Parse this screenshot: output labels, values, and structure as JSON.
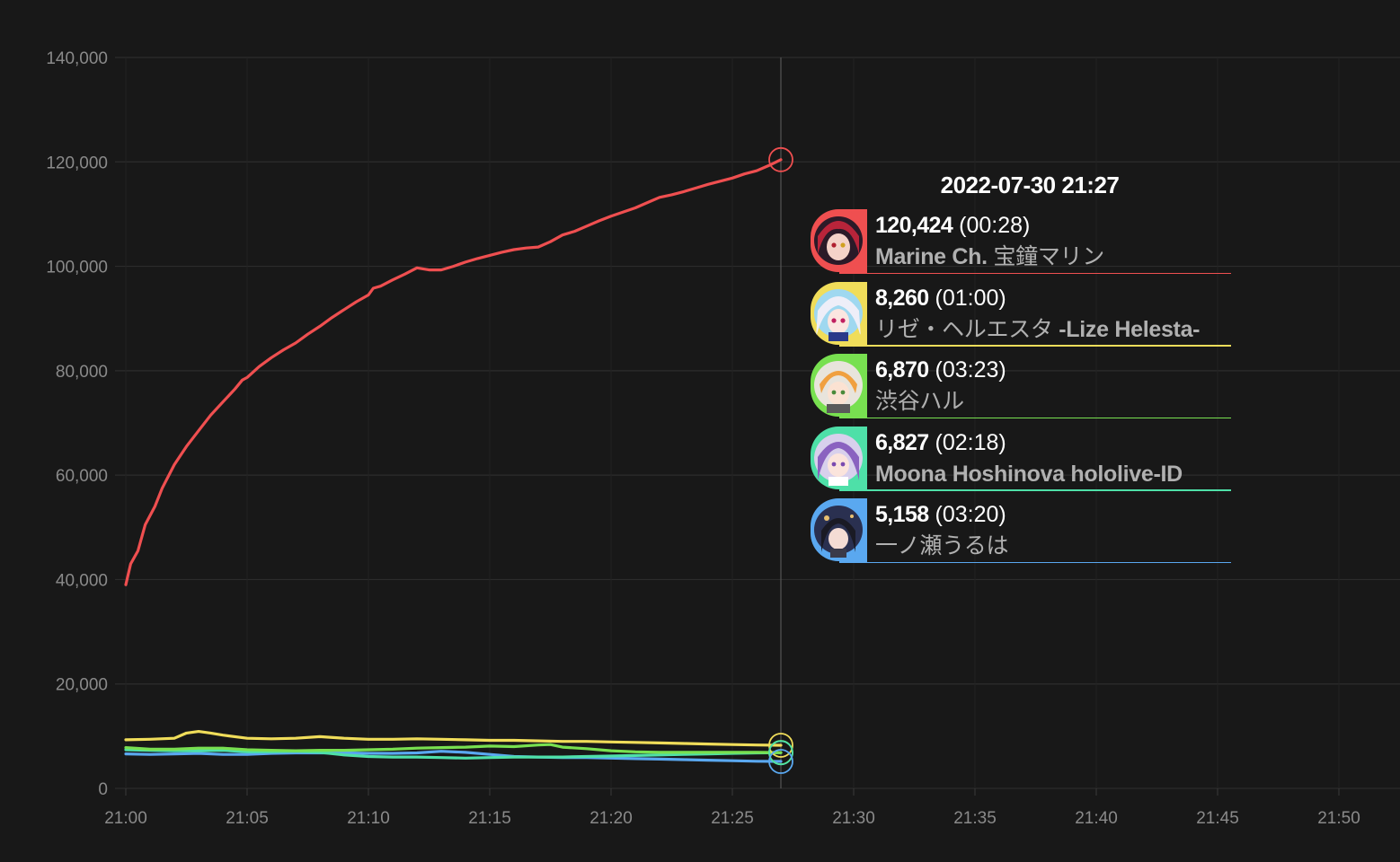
{
  "chart_data": {
    "type": "line",
    "x_ticks": [
      "21:00",
      "21:05",
      "21:10",
      "21:15",
      "21:20",
      "21:25",
      "21:30",
      "21:35",
      "21:40",
      "21:45",
      "21:50"
    ],
    "y_ticks": [
      "0",
      "20,000",
      "40,000",
      "60,000",
      "80,000",
      "100,000",
      "120,000",
      "140,000"
    ],
    "ylim": [
      0,
      140000
    ],
    "xlim_minutes": [
      0,
      52
    ],
    "grid": true,
    "cursor_time_minutes": 27,
    "series": [
      {
        "color": "#ef4f50",
        "points": [
          [
            0,
            39000
          ],
          [
            0.2,
            43000
          ],
          [
            0.5,
            45500
          ],
          [
            0.8,
            50500
          ],
          [
            1.2,
            54000
          ],
          [
            1.5,
            57500
          ],
          [
            2,
            62000
          ],
          [
            2.5,
            65500
          ],
          [
            3,
            68500
          ],
          [
            3.5,
            71500
          ],
          [
            4,
            74000
          ],
          [
            4.5,
            76500
          ],
          [
            4.8,
            78200
          ],
          [
            5,
            78700
          ],
          [
            5.5,
            80800
          ],
          [
            6,
            82500
          ],
          [
            6.5,
            84000
          ],
          [
            7,
            85300
          ],
          [
            7.5,
            87000
          ],
          [
            8,
            88500
          ],
          [
            8.5,
            90200
          ],
          [
            9,
            91700
          ],
          [
            9.5,
            93200
          ],
          [
            10,
            94500
          ],
          [
            10.2,
            95800
          ],
          [
            10.5,
            96200
          ],
          [
            11,
            97400
          ],
          [
            11.5,
            98500
          ],
          [
            12,
            99700
          ],
          [
            12.5,
            99300
          ],
          [
            13,
            99300
          ],
          [
            13.5,
            100000
          ],
          [
            14,
            100800
          ],
          [
            14.5,
            101500
          ],
          [
            15,
            102100
          ],
          [
            15.5,
            102700
          ],
          [
            16,
            103200
          ],
          [
            16.5,
            103500
          ],
          [
            17,
            103700
          ],
          [
            17.5,
            104700
          ],
          [
            18,
            106000
          ],
          [
            18.5,
            106700
          ],
          [
            19,
            107700
          ],
          [
            19.5,
            108700
          ],
          [
            20,
            109600
          ],
          [
            20.5,
            110400
          ],
          [
            21,
            111200
          ],
          [
            21.5,
            112200
          ],
          [
            22,
            113200
          ],
          [
            22.5,
            113700
          ],
          [
            23,
            114300
          ],
          [
            23.5,
            115000
          ],
          [
            24,
            115700
          ],
          [
            24.5,
            116300
          ],
          [
            25,
            116900
          ],
          [
            25.5,
            117700
          ],
          [
            26,
            118300
          ],
          [
            26.5,
            119300
          ],
          [
            27,
            120424
          ]
        ]
      },
      {
        "color": "#f0dd5a",
        "points": [
          [
            0,
            9300
          ],
          [
            1,
            9400
          ],
          [
            2,
            9600
          ],
          [
            2.5,
            10600
          ],
          [
            3,
            10900
          ],
          [
            3.5,
            10600
          ],
          [
            4,
            10200
          ],
          [
            5,
            9600
          ],
          [
            6,
            9500
          ],
          [
            7,
            9600
          ],
          [
            8,
            9900
          ],
          [
            9,
            9600
          ],
          [
            10,
            9400
          ],
          [
            11,
            9400
          ],
          [
            12,
            9500
          ],
          [
            13,
            9400
          ],
          [
            14,
            9300
          ],
          [
            15,
            9200
          ],
          [
            16,
            9200
          ],
          [
            17,
            9100
          ],
          [
            18,
            9000
          ],
          [
            19,
            9000
          ],
          [
            20,
            8900
          ],
          [
            21,
            8800
          ],
          [
            22,
            8700
          ],
          [
            23,
            8600
          ],
          [
            24,
            8500
          ],
          [
            25,
            8400
          ],
          [
            26,
            8300
          ],
          [
            27,
            8260
          ]
        ]
      },
      {
        "color": "#78e050",
        "points": [
          [
            0,
            7800
          ],
          [
            1,
            7500
          ],
          [
            2,
            7500
          ],
          [
            3,
            7700
          ],
          [
            4,
            7700
          ],
          [
            5,
            7400
          ],
          [
            6,
            7300
          ],
          [
            7,
            7200
          ],
          [
            8,
            7300
          ],
          [
            9,
            7300
          ],
          [
            10,
            7400
          ],
          [
            11,
            7500
          ],
          [
            12,
            7700
          ],
          [
            13,
            7800
          ],
          [
            14,
            7900
          ],
          [
            15,
            8100
          ],
          [
            16,
            8000
          ],
          [
            17,
            8300
          ],
          [
            17.5,
            8400
          ],
          [
            18,
            7900
          ],
          [
            19,
            7600
          ],
          [
            20,
            7200
          ],
          [
            21,
            7000
          ],
          [
            22,
            6900
          ],
          [
            23,
            6900
          ],
          [
            24,
            6900
          ],
          [
            25,
            6900
          ],
          [
            26,
            6900
          ],
          [
            27,
            6870
          ]
        ]
      },
      {
        "color": "#4ee0a8",
        "points": [
          [
            0,
            7400
          ],
          [
            1,
            7300
          ],
          [
            2,
            7200
          ],
          [
            3,
            7200
          ],
          [
            4,
            7300
          ],
          [
            5,
            7000
          ],
          [
            6,
            7000
          ],
          [
            7,
            7100
          ],
          [
            8,
            6900
          ],
          [
            9,
            6400
          ],
          [
            10,
            6100
          ],
          [
            11,
            6000
          ],
          [
            12,
            6000
          ],
          [
            13,
            5900
          ],
          [
            14,
            5800
          ],
          [
            15,
            5900
          ],
          [
            16,
            6000
          ],
          [
            17,
            6000
          ],
          [
            18,
            6000
          ],
          [
            19,
            6100
          ],
          [
            20,
            6200
          ],
          [
            21,
            6300
          ],
          [
            22,
            6400
          ],
          [
            23,
            6500
          ],
          [
            24,
            6600
          ],
          [
            25,
            6700
          ],
          [
            26,
            6800
          ],
          [
            27,
            6827
          ]
        ]
      },
      {
        "color": "#5aa8f0",
        "points": [
          [
            0,
            6600
          ],
          [
            1,
            6500
          ],
          [
            2,
            6600
          ],
          [
            3,
            6700
          ],
          [
            4,
            6500
          ],
          [
            5,
            6500
          ],
          [
            6,
            6700
          ],
          [
            7,
            6800
          ],
          [
            8,
            6800
          ],
          [
            9,
            6800
          ],
          [
            10,
            6700
          ],
          [
            11,
            6700
          ],
          [
            12,
            6800
          ],
          [
            13,
            7100
          ],
          [
            14,
            6900
          ],
          [
            15,
            6500
          ],
          [
            16,
            6100
          ],
          [
            17,
            6000
          ],
          [
            18,
            5900
          ],
          [
            19,
            5900
          ],
          [
            20,
            5800
          ],
          [
            21,
            5700
          ],
          [
            22,
            5600
          ],
          [
            23,
            5500
          ],
          [
            24,
            5400
          ],
          [
            25,
            5300
          ],
          [
            26,
            5200
          ],
          [
            27,
            5158
          ]
        ]
      }
    ]
  },
  "tooltip": {
    "title": "2022-07-30 21:27",
    "entries": [
      {
        "value": "120,424",
        "time": "(00:28)",
        "name_latin": "Marine Ch. ",
        "name_cjk": "宝鐘マリン",
        "color": "#ef4f50"
      },
      {
        "value": "8,260",
        "time": "(01:00)",
        "name_cjk": "リゼ・ヘルエスタ ",
        "name_latin": "-Lize Helesta-",
        "color": "#f0dd5a"
      },
      {
        "value": "6,870",
        "time": "(03:23)",
        "name_cjk": "渋谷ハル",
        "name_latin": "",
        "color": "#78e050"
      },
      {
        "value": "6,827",
        "time": "(02:18)",
        "name_latin": "Moona Hoshinova hololive-ID",
        "name_cjk": "",
        "color": "#4ee0a8"
      },
      {
        "value": "5,158",
        "time": "(03:20)",
        "name_cjk": "一ノ瀬うるは",
        "name_latin": "",
        "color": "#5aa8f0"
      }
    ]
  }
}
